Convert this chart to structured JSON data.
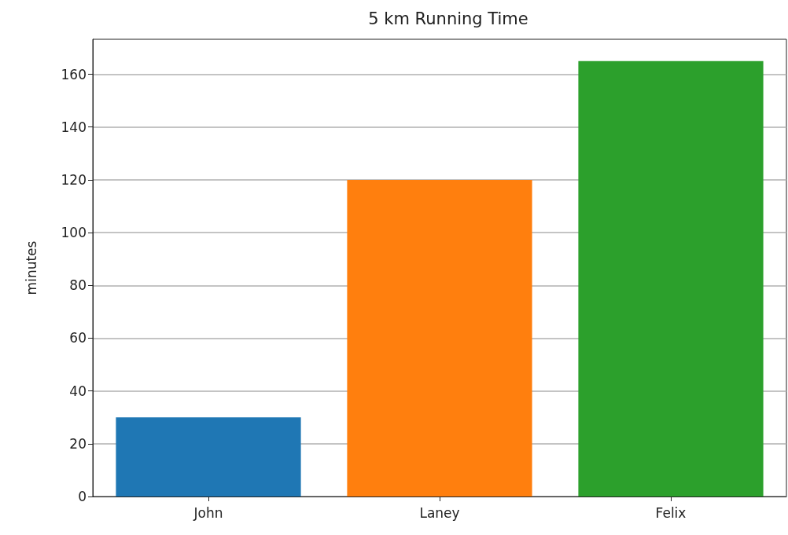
{
  "chart_data": {
    "type": "bar",
    "title": "5 km Running Time",
    "ylabel": "minutes",
    "categories": [
      "John",
      "Laney",
      "Felix"
    ],
    "values": [
      30,
      120,
      165
    ],
    "colors": [
      "#1f77b4",
      "#ff7f0e",
      "#2ca02c"
    ],
    "ylim": [
      0,
      173.25
    ],
    "yticks": [
      0,
      20,
      40,
      60,
      80,
      100,
      120,
      140,
      160
    ],
    "grid": "y"
  }
}
